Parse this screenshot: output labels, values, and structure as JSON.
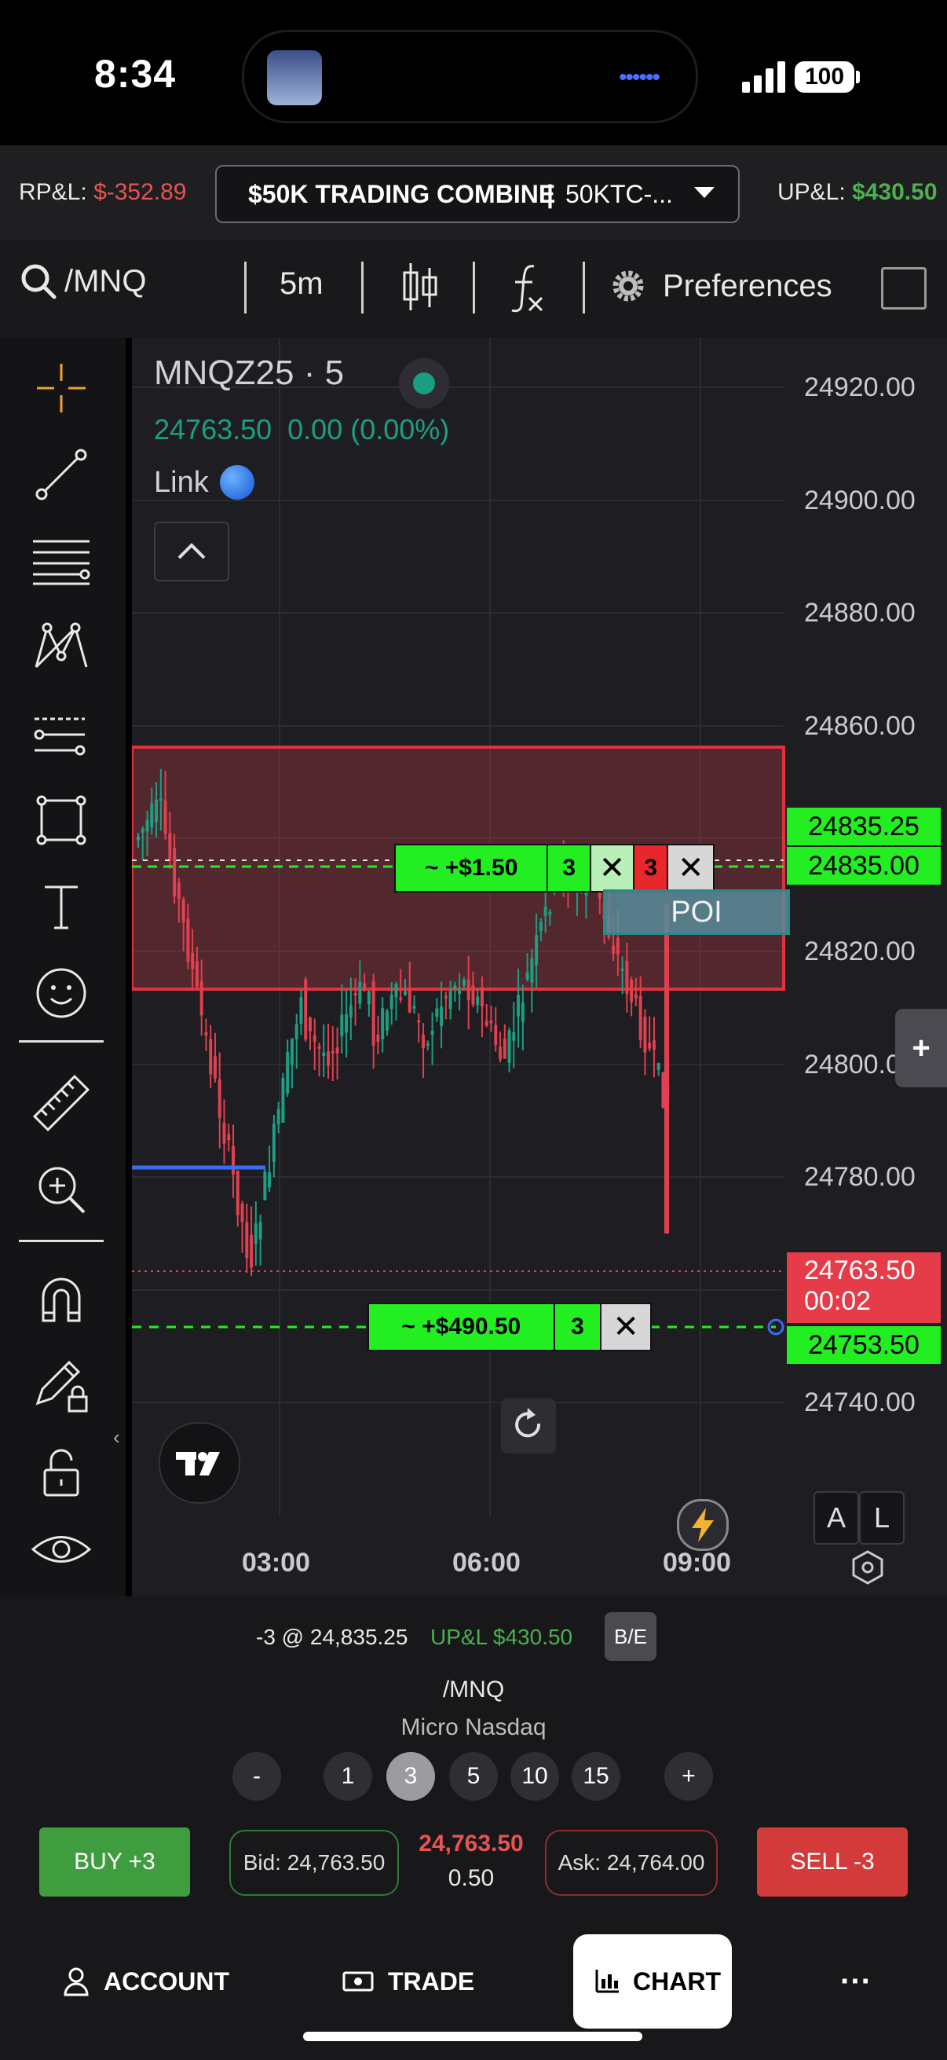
{
  "status_bar": {
    "time": "8:34",
    "battery": "100"
  },
  "account_header": {
    "rpl_label": "RP&L:",
    "rpl_value": "$-352.89",
    "account_name": "$50K TRADING COMBINE",
    "account_sep": "|",
    "account_id": "50KTC-...",
    "upl_label": "UP&L:",
    "upl_value": "$430.50"
  },
  "toolbar": {
    "symbol": "/MNQ",
    "interval": "5m",
    "preferences": "Preferences"
  },
  "chart": {
    "symbol_title": "MNQZ25 · 5",
    "last_change": "24763.50  0.00 (0.00%)",
    "link_label": "Link",
    "price_axis": [
      "24920.00",
      "24900.00",
      "24880.00",
      "24860.00",
      "24820.00",
      "24800.00",
      "24780.00",
      "24740.00"
    ],
    "time_axis": [
      "03:00",
      "06:00",
      "09:00"
    ],
    "tags": {
      "entry_price": "24835.25",
      "stop_price": "24835.00",
      "last_price": "24763.50",
      "countdown": "00:02",
      "target_price": "24753.50"
    },
    "stop_order": {
      "pnl": "~ +$1.50",
      "qty": "3",
      "qty_red": "3"
    },
    "target_order": {
      "pnl": "~ +$490.50",
      "qty": "3"
    },
    "poi_label": "POI",
    "scale_a": "A",
    "scale_l": "L",
    "colors": {
      "zone": "#e0323f",
      "up": "#1e9e82",
      "down": "#e0404f",
      "order_green": "#22ee22"
    }
  },
  "position": {
    "summary": "-3 @ 24,835.25",
    "upl": "UP&L $430.50",
    "be_button": "B/E",
    "symbol": "/MNQ",
    "name": "Micro Nasdaq"
  },
  "quantity": {
    "minus": "-",
    "plus": "+",
    "options": [
      "1",
      "3",
      "5",
      "10",
      "15"
    ],
    "selected": "3"
  },
  "trade": {
    "buy_label": "BUY +3",
    "bid_label": "Bid: 24,763.50",
    "last": "24,763.50",
    "spread": "0.50",
    "ask_label": "Ask: 24,764.00",
    "sell_label": "SELL -3"
  },
  "nav": {
    "account": "ACCOUNT",
    "trade": "TRADE",
    "chart": "CHART",
    "more": "···"
  }
}
